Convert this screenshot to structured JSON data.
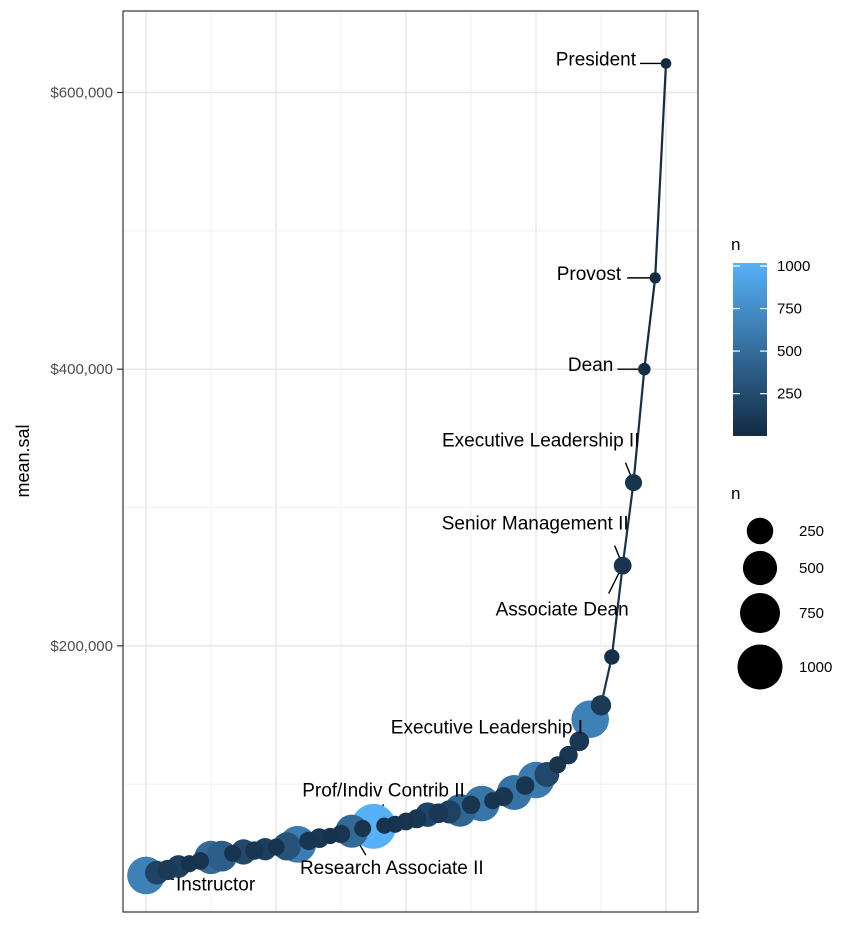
{
  "chart_data": {
    "type": "scatter",
    "ylabel": "mean.sal",
    "xlabel": "",
    "ylim": [
      0,
      650000
    ],
    "yticks": [
      200000,
      400000,
      600000
    ],
    "ytick_labels": [
      "$200,000",
      "$400,000",
      "$600,000"
    ],
    "grid": true,
    "points": [
      {
        "x": 1,
        "y": 34000,
        "n": 640
      },
      {
        "x": 2,
        "y": 36000,
        "n": 180
      },
      {
        "x": 3,
        "y": 38000,
        "n": 110
      },
      {
        "x": 4,
        "y": 40500,
        "n": 160
      },
      {
        "x": 5,
        "y": 42500,
        "n": 60
      },
      {
        "x": 6,
        "y": 44500,
        "n": 70
      },
      {
        "x": 7,
        "y": 47000,
        "n": 470
      },
      {
        "x": 8,
        "y": 48000,
        "n": 380
      },
      {
        "x": 9,
        "y": 50000,
        "n": 60
      },
      {
        "x": 10,
        "y": 51000,
        "n": 220
      },
      {
        "x": 11,
        "y": 52000,
        "n": 80
      },
      {
        "x": 12,
        "y": 53000,
        "n": 150
      },
      {
        "x": 13,
        "y": 54500,
        "n": 60
      },
      {
        "x": 14,
        "y": 55000,
        "n": 300
      },
      {
        "x": 15,
        "y": 56500,
        "n": 610
      },
      {
        "x": 16,
        "y": 59000,
        "n": 80
      },
      {
        "x": 17,
        "y": 61000,
        "n": 100
      },
      {
        "x": 18,
        "y": 62500,
        "n": 50
      },
      {
        "x": 19,
        "y": 64000,
        "n": 80
      },
      {
        "x": 20,
        "y": 66000,
        "n": 460
      },
      {
        "x": 21,
        "y": 68000,
        "n": 60
      },
      {
        "x": 22,
        "y": 69500,
        "n": 1000
      },
      {
        "x": 23,
        "y": 70000,
        "n": 50
      },
      {
        "x": 24,
        "y": 71000,
        "n": 60
      },
      {
        "x": 25,
        "y": 73000,
        "n": 70
      },
      {
        "x": 26,
        "y": 75000,
        "n": 90
      },
      {
        "x": 27,
        "y": 78000,
        "n": 200
      },
      {
        "x": 28,
        "y": 79000,
        "n": 100
      },
      {
        "x": 29,
        "y": 80000,
        "n": 170
      },
      {
        "x": 30,
        "y": 81000,
        "n": 440
      },
      {
        "x": 31,
        "y": 85000,
        "n": 80
      },
      {
        "x": 32,
        "y": 86000,
        "n": 560
      },
      {
        "x": 33,
        "y": 88000,
        "n": 60
      },
      {
        "x": 34,
        "y": 91000,
        "n": 90
      },
      {
        "x": 35,
        "y": 94000,
        "n": 530
      },
      {
        "x": 36,
        "y": 99000,
        "n": 80
      },
      {
        "x": 37,
        "y": 103000,
        "n": 590
      },
      {
        "x": 38,
        "y": 107000,
        "n": 210
      },
      {
        "x": 39,
        "y": 114000,
        "n": 60
      },
      {
        "x": 40,
        "y": 121000,
        "n": 80
      },
      {
        "x": 41,
        "y": 131000,
        "n": 100
      },
      {
        "x": 42,
        "y": 147000,
        "n": 640
      },
      {
        "x": 43,
        "y": 157000,
        "n": 110
      },
      {
        "x": 44,
        "y": 192000,
        "n": 40
      },
      {
        "x": 45,
        "y": 258000,
        "n": 70
      },
      {
        "x": 46,
        "y": 318000,
        "n": 60
      },
      {
        "x": 47,
        "y": 400000,
        "n": 15
      },
      {
        "x": 48,
        "y": 466000,
        "n": 8
      },
      {
        "x": 49,
        "y": 621000,
        "n": 5
      }
    ],
    "labels": [
      {
        "text": "President",
        "point": 49
      },
      {
        "text": "Provost",
        "point": 48
      },
      {
        "text": "Dean",
        "point": 47
      },
      {
        "text": "Executive Leadership II",
        "point": 46
      },
      {
        "text": "Senior Management II",
        "point": 45
      },
      {
        "text": "Associate Dean",
        "point": 45
      },
      {
        "text": "Executive Leadership I",
        "point": 43
      },
      {
        "text": "Prof/Indiv Contrib II",
        "point": 22
      },
      {
        "text": "Research Associate II",
        "point": 20
      },
      {
        "text": "Instructor",
        "point": 1
      }
    ],
    "color_legend": {
      "title": "n",
      "breaks": [
        250,
        500,
        750,
        1000
      ],
      "labels": [
        "250",
        "500",
        "750",
        "1000"
      ],
      "range": [
        1,
        1000
      ],
      "low": "#132B43",
      "high": "#56B1F7"
    },
    "size_legend": {
      "title": "n",
      "breaks": [
        250,
        500,
        750,
        1000
      ],
      "labels": [
        "250",
        "500",
        "750",
        "1000"
      ]
    }
  }
}
